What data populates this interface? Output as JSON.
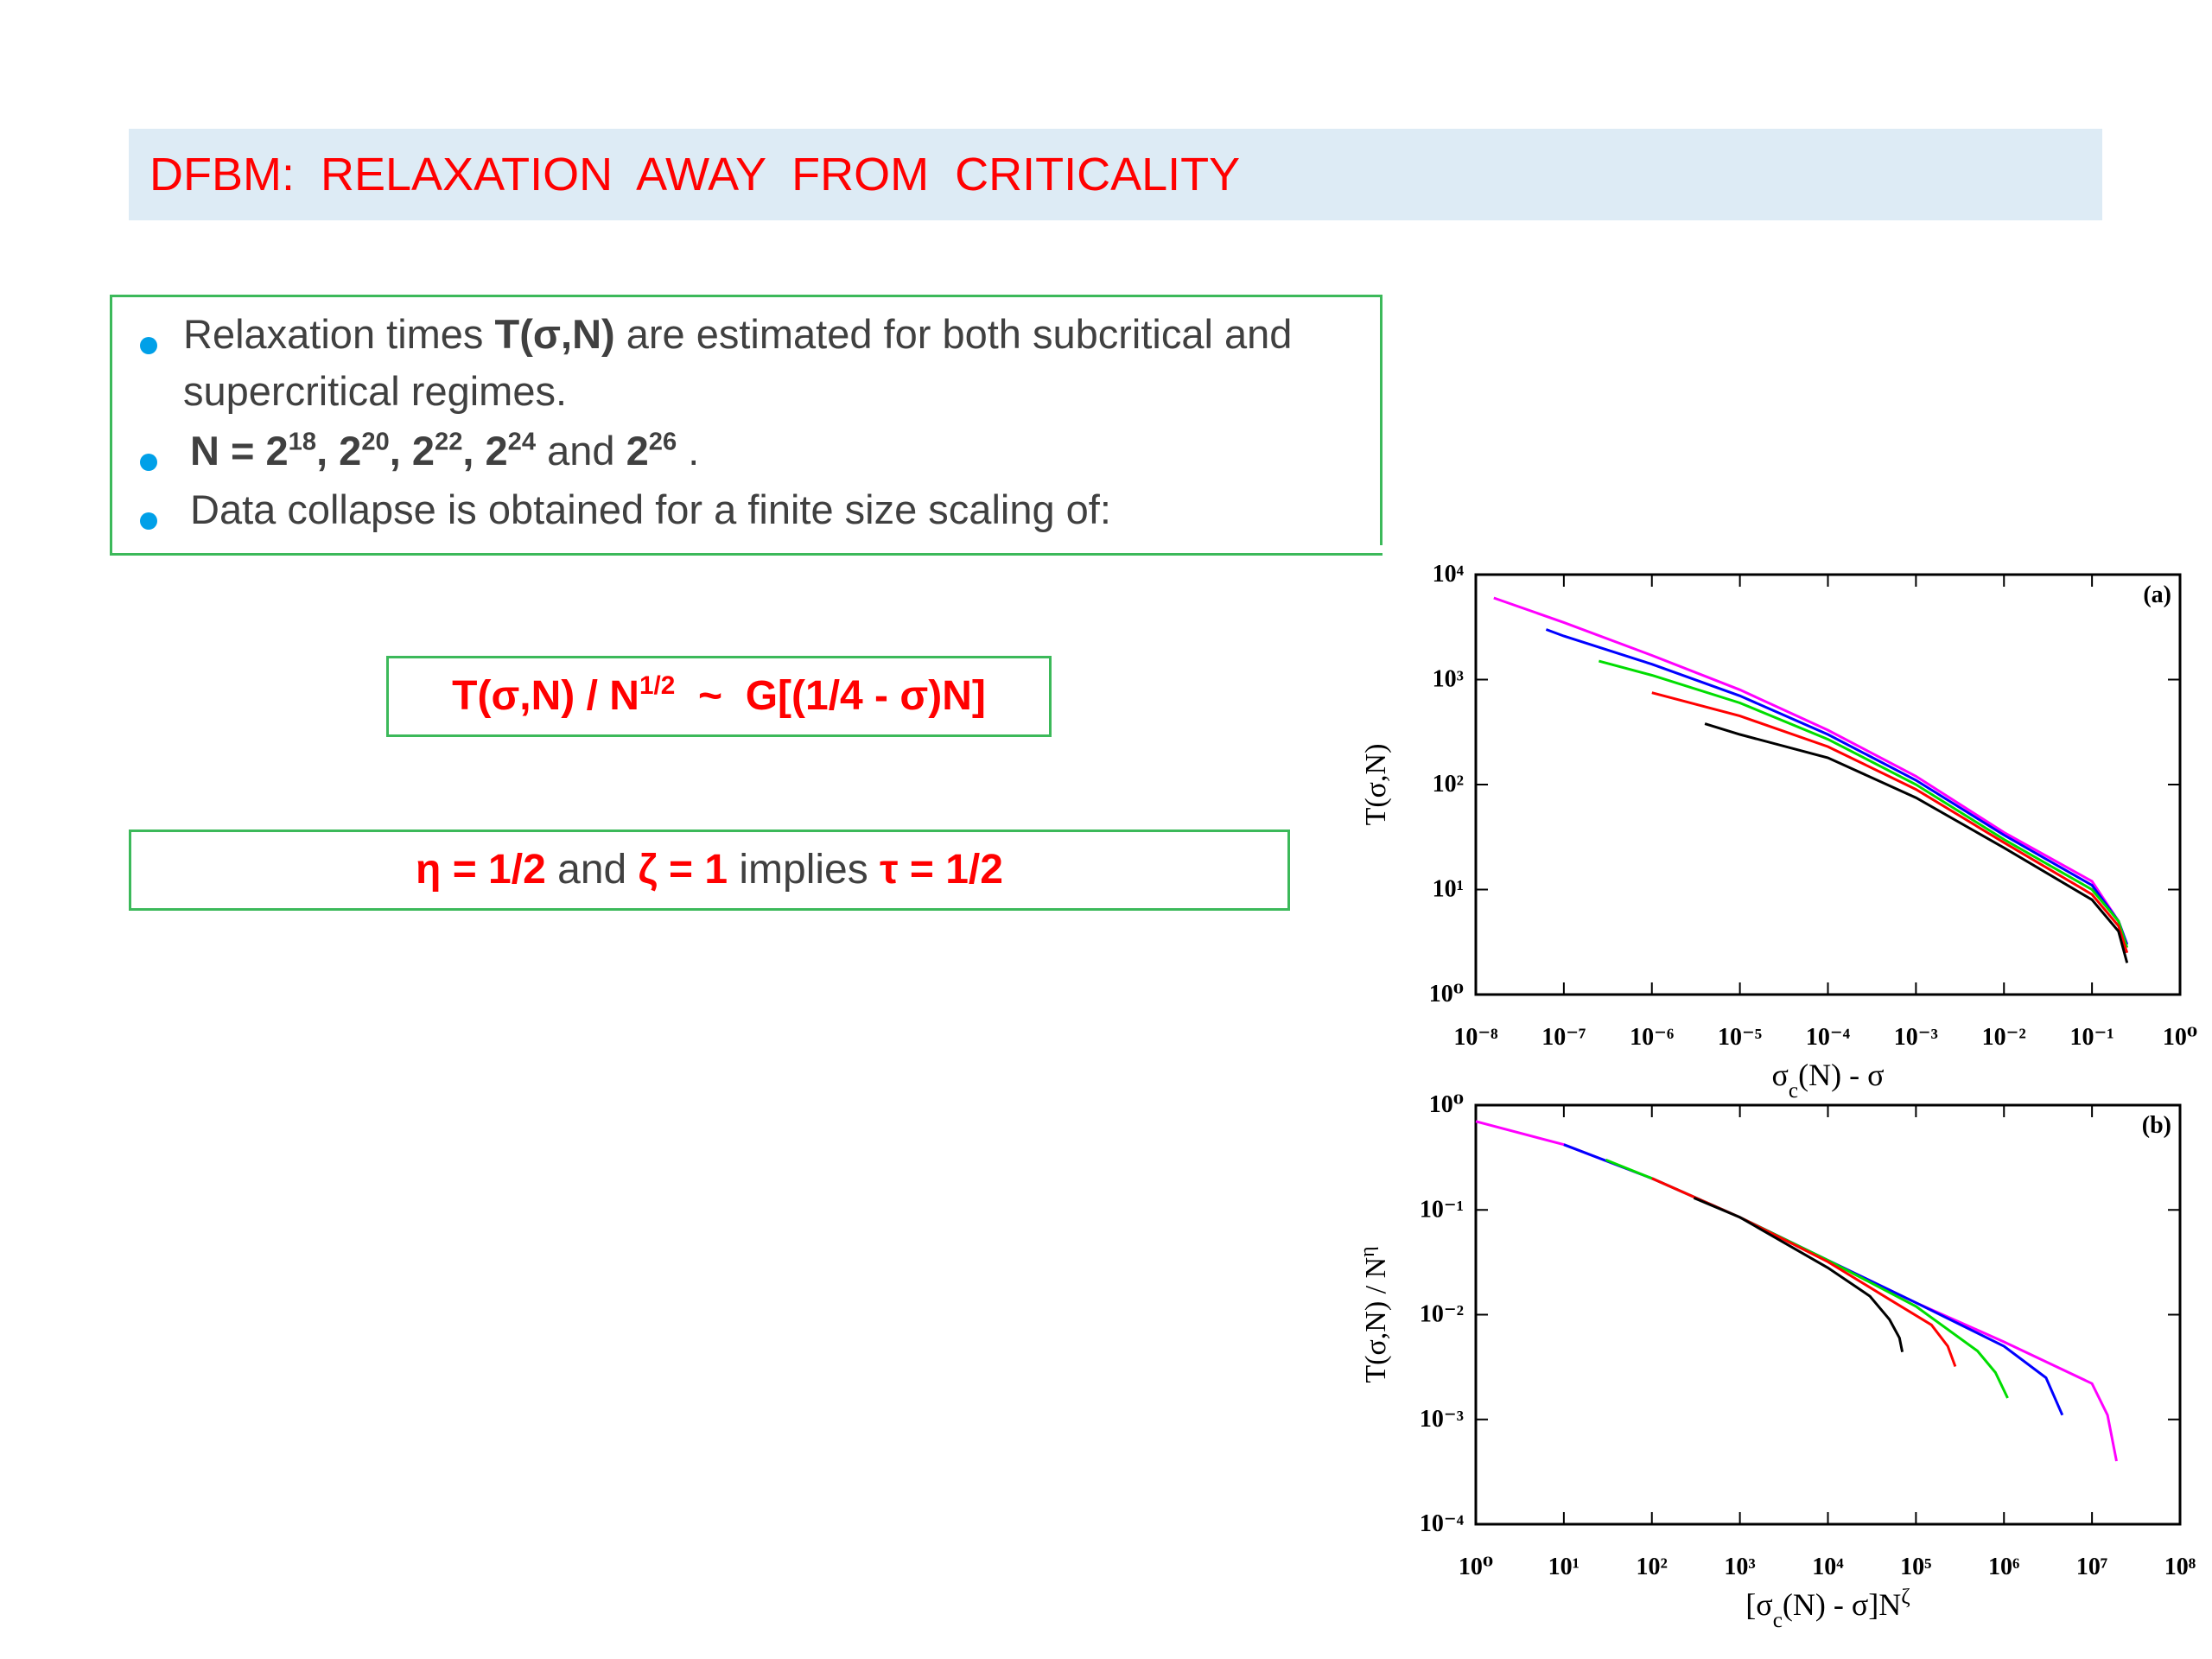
{
  "title": "DFBM:  RELAXATION  AWAY  FROM  CRITICALITY",
  "bullets": [
    [
      {
        "text": "Relaxation times "
      },
      {
        "text": "T(σ,N)",
        "bold": true
      },
      {
        "text": " are estimated for both subcritical and supercritical regimes."
      }
    ],
    [
      {
        "text": "N = 2",
        "bold": true
      },
      {
        "text": "18",
        "bold": true,
        "sup": true
      },
      {
        "text": ", 2",
        "bold": true
      },
      {
        "text": "20",
        "bold": true,
        "sup": true
      },
      {
        "text": ", 2",
        "bold": true
      },
      {
        "text": "22",
        "bold": true,
        "sup": true
      },
      {
        "text": ", 2",
        "bold": true
      },
      {
        "text": "24",
        "bold": true,
        "sup": true
      },
      {
        "text": " and "
      },
      {
        "text": "2",
        "bold": true
      },
      {
        "text": "26",
        "bold": true,
        "sup": true
      },
      {
        "text": " ."
      }
    ],
    [
      {
        "text": "Data collapse is obtained for a finite size scaling of:"
      }
    ]
  ],
  "equations": [
    [
      {
        "text": "T(σ,N) / N",
        "bold": true,
        "red": true
      },
      {
        "text": "1/2",
        "bold": true,
        "red": true,
        "sup": true
      },
      {
        "text": "  ~  G[(1/4 - σ)N]",
        "bold": true,
        "red": true
      }
    ],
    [
      {
        "text": "η = 1/2",
        "bold": true,
        "red": true
      },
      {
        "text": " and "
      },
      {
        "text": "ζ = 1",
        "bold": true,
        "red": true
      },
      {
        "text": " implies "
      },
      {
        "text": "τ = 1/2",
        "bold": true,
        "red": true
      }
    ]
  ],
  "chart_data": [
    {
      "type": "line",
      "panel_label": "(a)",
      "xscale": "log",
      "yscale": "log",
      "xlabel": [
        {
          "text": "σ"
        },
        {
          "text": "c",
          "sub": true
        },
        {
          "text": "(N) - σ"
        }
      ],
      "ylabel": [
        {
          "text": "T(σ,N)"
        }
      ],
      "xlim": [
        1e-08,
        1
      ],
      "ylim": [
        1,
        10000
      ],
      "xticks": [
        {
          "value": 1e-08,
          "label": "10⁻⁸"
        },
        {
          "value": 1e-07,
          "label": "10⁻⁷"
        },
        {
          "value": 1e-06,
          "label": "10⁻⁶"
        },
        {
          "value": 1e-05,
          "label": "10⁻⁵"
        },
        {
          "value": 0.0001,
          "label": "10⁻⁴"
        },
        {
          "value": 0.001,
          "label": "10⁻³"
        },
        {
          "value": 0.01,
          "label": "10⁻²"
        },
        {
          "value": 0.1,
          "label": "10⁻¹"
        },
        {
          "value": 1,
          "label": "10⁰"
        }
      ],
      "yticks": [
        {
          "value": 1,
          "label": "10⁰"
        },
        {
          "value": 10,
          "label": "10¹"
        },
        {
          "value": 100,
          "label": "10²"
        },
        {
          "value": 1000,
          "label": "10³"
        },
        {
          "value": 10000,
          "label": "10⁴"
        }
      ],
      "series": [
        {
          "color": "#ff00ff",
          "x": [
            1.6e-08,
            1e-07,
            1e-06,
            1e-05,
            0.0001,
            0.001,
            0.01,
            0.1,
            0.2,
            0.25
          ],
          "values": [
            6000,
            3500,
            1700,
            800,
            330,
            120,
            35,
            12,
            5,
            3
          ]
        },
        {
          "color": "#0000ff",
          "x": [
            6.3e-08,
            1e-07,
            1e-06,
            1e-05,
            0.0001,
            0.001,
            0.01,
            0.1,
            0.2,
            0.25
          ],
          "values": [
            3000,
            2600,
            1400,
            700,
            300,
            110,
            33,
            11,
            5,
            3
          ]
        },
        {
          "color": "#00dd00",
          "x": [
            2.5e-07,
            1e-06,
            1e-05,
            0.0001,
            0.001,
            0.01,
            0.1,
            0.2,
            0.25
          ],
          "values": [
            1500,
            1100,
            600,
            270,
            100,
            30,
            10,
            5,
            2.8
          ]
        },
        {
          "color": "#ff0000",
          "x": [
            1e-06,
            1e-05,
            0.0001,
            0.001,
            0.01,
            0.1,
            0.2,
            0.25
          ],
          "values": [
            750,
            450,
            230,
            90,
            28,
            9,
            4.5,
            2.5
          ]
        },
        {
          "color": "#000000",
          "x": [
            4e-06,
            1e-05,
            0.0001,
            0.001,
            0.01,
            0.1,
            0.2,
            0.25
          ],
          "values": [
            380,
            300,
            180,
            75,
            25,
            8,
            4,
            2
          ]
        }
      ]
    },
    {
      "type": "line",
      "panel_label": "(b)",
      "xscale": "log",
      "yscale": "log",
      "xlabel": [
        {
          "text": "[σ"
        },
        {
          "text": "c",
          "sub": true
        },
        {
          "text": "(N) - σ]N"
        },
        {
          "text": "ζ",
          "sup": true
        }
      ],
      "ylabel": [
        {
          "text": "T(σ,N) / N"
        },
        {
          "text": "η",
          "sup": true
        }
      ],
      "xlim": [
        1,
        100000000
      ],
      "ylim": [
        0.0001,
        1
      ],
      "xticks": [
        {
          "value": 1,
          "label": "10⁰"
        },
        {
          "value": 10,
          "label": "10¹"
        },
        {
          "value": 100,
          "label": "10²"
        },
        {
          "value": 1000,
          "label": "10³"
        },
        {
          "value": 10000,
          "label": "10⁴"
        },
        {
          "value": 100000,
          "label": "10⁵"
        },
        {
          "value": 1000000,
          "label": "10⁶"
        },
        {
          "value": 10000000,
          "label": "10⁷"
        },
        {
          "value": 100000000,
          "label": "10⁸"
        }
      ],
      "yticks": [
        {
          "value": 0.0001,
          "label": "10⁻⁴"
        },
        {
          "value": 0.001,
          "label": "10⁻³"
        },
        {
          "value": 0.01,
          "label": "10⁻²"
        },
        {
          "value": 0.1,
          "label": "10⁻¹"
        },
        {
          "value": 1,
          "label": "10⁰"
        }
      ],
      "series": [
        {
          "color": "#ff00ff",
          "x": [
            1,
            10,
            100,
            1000,
            10000,
            100000,
            1000000,
            10000000,
            15000000,
            19000000
          ],
          "values": [
            0.7,
            0.42,
            0.2,
            0.085,
            0.033,
            0.013,
            0.0055,
            0.0022,
            0.0011,
            0.0004
          ]
        },
        {
          "color": "#0000ff",
          "x": [
            10,
            100,
            1000,
            10000,
            100000,
            1000000,
            3000000,
            4600000
          ],
          "values": [
            0.42,
            0.2,
            0.085,
            0.033,
            0.013,
            0.005,
            0.0025,
            0.0011
          ]
        },
        {
          "color": "#00dd00",
          "x": [
            30,
            100,
            1000,
            10000,
            100000,
            500000,
            800000,
            1100000
          ],
          "values": [
            0.3,
            0.2,
            0.085,
            0.033,
            0.012,
            0.0045,
            0.0028,
            0.0016
          ]
        },
        {
          "color": "#ff0000",
          "x": [
            100,
            1000,
            10000,
            50000,
            150000,
            230000,
            280000
          ],
          "values": [
            0.2,
            0.085,
            0.032,
            0.014,
            0.008,
            0.005,
            0.0032
          ]
        },
        {
          "color": "#000000",
          "x": [
            300,
            1000,
            10000,
            30000,
            50000,
            65000,
            70000
          ],
          "values": [
            0.13,
            0.085,
            0.028,
            0.015,
            0.009,
            0.006,
            0.0044
          ]
        }
      ]
    }
  ]
}
